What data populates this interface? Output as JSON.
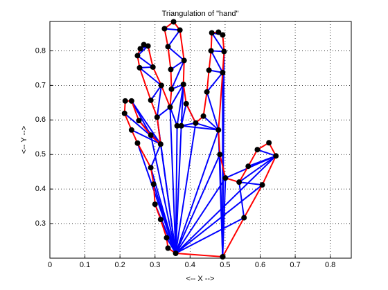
{
  "chart_data": {
    "type": "triangulation",
    "title": "Triangulation of \"hand\"",
    "x_label": "<-- X -->",
    "y_label": "<-- Y -->",
    "xlim": [
      0,
      0.86
    ],
    "ylim": [
      0.2,
      0.885
    ],
    "xticks": [
      0,
      0.1,
      0.2,
      0.3,
      0.4,
      0.5,
      0.6,
      0.7,
      0.8
    ],
    "yticks": [
      0.3,
      0.4,
      0.5,
      0.6,
      0.7,
      0.8
    ],
    "grid": true,
    "boundary": {
      "color": "#ff0000",
      "x": [
        0.359,
        0.493,
        0.554,
        0.606,
        0.645,
        0.625,
        0.592,
        0.566,
        0.54,
        0.501,
        0.485,
        0.481,
        0.493,
        0.497,
        0.493,
        0.481,
        0.462,
        0.46,
        0.454,
        0.448,
        0.438,
        0.416,
        0.389,
        0.381,
        0.383,
        0.371,
        0.353,
        0.327,
        0.337,
        0.345,
        0.347,
        0.343,
        0.318,
        0.294,
        0.28,
        0.268,
        0.258,
        0.25,
        0.256,
        0.288,
        0.306,
        0.316,
        0.288,
        0.254,
        0.233,
        0.215,
        0.213,
        0.233,
        0.25,
        0.288,
        0.296,
        0.3,
        0.316,
        0.333,
        0.337
      ],
      "y": [
        0.214,
        0.204,
        0.317,
        0.412,
        0.496,
        0.534,
        0.514,
        0.466,
        0.42,
        0.432,
        0.5,
        0.571,
        0.737,
        0.798,
        0.846,
        0.854,
        0.852,
        0.8,
        0.744,
        0.681,
        0.611,
        0.591,
        0.647,
        0.703,
        0.772,
        0.86,
        0.884,
        0.864,
        0.812,
        0.746,
        0.689,
        0.637,
        0.7,
        0.753,
        0.814,
        0.818,
        0.806,
        0.786,
        0.751,
        0.657,
        0.608,
        0.53,
        0.556,
        0.598,
        0.655,
        0.655,
        0.619,
        0.571,
        0.533,
        0.462,
        0.414,
        0.356,
        0.312,
        0.259,
        0.229
      ]
    },
    "interior": {
      "x": [
        0.363,
        0.375
      ],
      "y": [
        0.583,
        0.583
      ]
    },
    "edge_color": "#0000ff",
    "point_color": "#000000",
    "edges": [
      [
        0,
        2
      ],
      [
        0,
        3
      ],
      [
        0,
        4
      ],
      [
        1,
        9
      ],
      [
        1,
        10
      ],
      [
        1,
        11
      ],
      [
        1,
        12
      ],
      [
        1,
        13
      ],
      [
        0,
        9
      ],
      [
        0,
        10
      ],
      [
        0,
        11
      ],
      [
        0,
        21
      ],
      [
        0,
        55
      ],
      [
        0,
        56
      ],
      [
        0,
        31
      ],
      [
        0,
        40
      ],
      [
        0,
        41
      ],
      [
        0,
        42
      ],
      [
        0,
        48
      ],
      [
        0,
        49
      ],
      [
        0,
        50
      ],
      [
        0,
        51
      ],
      [
        0,
        52
      ],
      [
        0,
        53
      ],
      [
        4,
        9
      ],
      [
        4,
        8
      ],
      [
        4,
        7
      ],
      [
        4,
        6
      ],
      [
        3,
        8
      ],
      [
        2,
        8
      ],
      [
        11,
        20
      ],
      [
        11,
        21
      ],
      [
        11,
        19
      ],
      [
        12,
        19
      ],
      [
        12,
        18
      ],
      [
        12,
        17
      ],
      [
        13,
        17
      ],
      [
        13,
        16
      ],
      [
        14,
        16
      ],
      [
        11,
        56
      ],
      [
        21,
        56
      ],
      [
        21,
        22
      ],
      [
        22,
        56
      ],
      [
        23,
        56
      ],
      [
        23,
        55
      ],
      [
        24,
        29
      ],
      [
        24,
        28
      ],
      [
        25,
        28
      ],
      [
        25,
        27
      ],
      [
        24,
        30
      ],
      [
        23,
        30
      ],
      [
        23,
        31
      ],
      [
        31,
        55
      ],
      [
        32,
        40
      ],
      [
        32,
        39
      ],
      [
        32,
        38
      ],
      [
        33,
        38
      ],
      [
        33,
        37
      ],
      [
        34,
        37
      ],
      [
        34,
        36
      ],
      [
        41,
        47
      ],
      [
        41,
        46
      ],
      [
        41,
        43
      ],
      [
        41,
        44
      ],
      [
        42,
        44
      ],
      [
        41,
        49
      ],
      [
        40,
        41
      ],
      [
        31,
        40
      ]
    ]
  }
}
